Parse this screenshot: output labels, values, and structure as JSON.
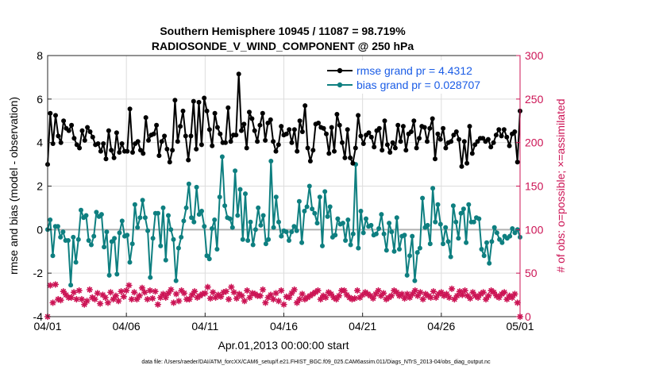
{
  "chart_data": {
    "type": "line",
    "title_line1": "Southern Hemisphere 10945 / 11087 = 98.719%",
    "title_line2": "RADIOSONDE_V_WIND_COMPONENT @ 250 hPa",
    "xlabel": "Apr.01,2013 00:00:00 start",
    "ylabel_left": "rmse and bias (model - observation)",
    "ylabel_right": "# of obs: o=possible; ×=assimilated",
    "footer": "data file: /Users/raeder/DAI/ATM_forcXX/CAM6_setup/f.e21.FHIST_BGC.f09_025.CAM6assim.011/Diags_NTrS_2013-04/obs_diag_output.nc",
    "xlim": [
      0,
      30
    ],
    "ylim_left": [
      -4,
      8
    ],
    "ylim_right": [
      0,
      300
    ],
    "x_ticks": [
      0,
      5,
      10,
      15,
      20,
      25,
      30
    ],
    "x_tick_labels": [
      "04/01",
      "04/06",
      "04/11",
      "04/16",
      "04/21",
      "04/26",
      "05/01"
    ],
    "y_ticks_left": [
      -4,
      -2,
      0,
      2,
      4,
      6,
      8
    ],
    "y_tick_labels_left": [
      "-4",
      "-2",
      "0",
      "2",
      "4",
      "6",
      "8"
    ],
    "y_ticks_right": [
      0,
      50,
      100,
      150,
      200,
      250,
      300
    ],
    "y_tick_labels_right": [
      "0",
      "50",
      "100",
      "150",
      "200",
      "250",
      "300"
    ],
    "grid": true,
    "legend": {
      "position": "top-right",
      "entries": [
        "rmse grand pr = 4.4312",
        "bias grand pr = 0.028707"
      ]
    },
    "colors": {
      "rmse": "#000000",
      "bias": "#0e7f80",
      "obs": "#cc1455",
      "legend_text": "#1a5ce6",
      "zero_line": "#b0b0b0",
      "grid": "#dddddd"
    },
    "series": [
      {
        "name": "rmse",
        "axis": "left",
        "values": [
          3.0,
          5.35,
          3.95,
          5.25,
          4.3,
          4.0,
          5.0,
          4.65,
          4.55,
          4.8,
          4.2,
          3.9,
          3.75,
          4.55,
          4.1,
          4.7,
          4.5,
          4.25,
          3.9,
          3.95,
          3.6,
          3.95,
          3.25,
          4.55,
          3.65,
          3.3,
          4.45,
          3.55,
          3.95,
          3.6,
          3.6,
          5.55,
          3.55,
          3.95,
          4.05,
          3.65,
          3.5,
          5.15,
          4.1,
          4.35,
          4.4,
          4.8,
          3.4,
          4.05,
          4.3,
          3.7,
          3.1,
          3.65,
          5.95,
          4.05,
          4.75,
          5.45,
          4.3,
          3.2,
          4.3,
          5.9,
          3.7,
          5.85,
          3.9,
          6.05,
          5.45,
          4.6,
          3.85,
          5.35,
          4.7,
          4.4,
          4.0,
          4.0,
          5.6,
          4.05,
          4.35,
          4.35,
          7.15,
          4.55,
          4.85,
          3.75,
          5.4,
          5.1,
          4.55,
          4.05,
          4.8,
          5.35,
          4.1,
          4.9,
          5.05,
          4.05,
          3.6,
          3.9,
          4.75,
          4.35,
          4.4,
          4.6,
          4.0,
          4.6,
          3.6,
          5.0,
          4.5,
          5.7,
          3.75,
          3.15,
          3.65,
          4.85,
          4.9,
          4.7,
          4.65,
          4.4,
          3.5,
          4.7,
          3.6,
          5.3,
          4.8,
          4.0,
          3.3,
          4.6,
          3.3,
          3.05,
          3.75,
          5.25,
          4.3,
          3.95,
          4.35,
          4.45,
          4.25,
          3.8,
          4.55,
          4.65,
          3.65,
          5.0,
          3.9,
          3.55,
          4.0,
          3.75,
          4.8,
          4.05,
          4.75,
          3.65,
          4.4,
          4.5,
          5.0,
          3.75,
          4.2,
          4.75,
          4.7,
          4.05,
          4.65,
          5.1,
          3.25,
          4.4,
          4.15,
          4.65,
          3.75,
          4.0,
          4.05,
          4.35,
          4.5,
          4.15,
          2.9,
          4.05,
          3.05,
          4.75,
          3.5,
          3.9,
          4.05,
          4.2,
          4.2,
          4.05,
          4.15,
          3.8,
          4.0,
          4.35,
          4.6,
          4.3,
          4.6,
          4.25,
          3.85,
          4.4,
          4.5,
          3.1,
          5.45
        ]
      },
      {
        "name": "bias",
        "axis": "left",
        "values": [
          0.0,
          0.45,
          -1.2,
          0.15,
          0.15,
          -0.35,
          -0.1,
          -0.5,
          -0.5,
          -2.55,
          -0.35,
          -1.5,
          -0.45,
          0.9,
          0.55,
          0.65,
          -0.5,
          -0.7,
          -0.3,
          0.8,
          0.6,
          0.7,
          -0.8,
          -0.1,
          -2.1,
          -0.55,
          -0.4,
          -2.05,
          -0.15,
          0.4,
          -0.3,
          -0.25,
          -1.5,
          -0.65,
          1.15,
          0.1,
          0.55,
          1.35,
          0.55,
          -0.05,
          -2.2,
          -0.4,
          0.75,
          0.75,
          -0.75,
          1.0,
          -1.4,
          0.65,
          0.0,
          -0.45,
          -2.35,
          -0.85,
          -0.35,
          0.4,
          1.0,
          2.1,
          0.55,
          0.35,
          1.95,
          0.7,
          0.85,
          0.15,
          -1.2,
          -1.35,
          0.05,
          0.45,
          -0.9,
          1.5,
          3.35,
          1.1,
          0.55,
          0.5,
          0.1,
          2.7,
          0.65,
          1.85,
          -0.45,
          1.65,
          -0.5,
          0.35,
          -0.7,
          0.0,
          1.0,
          0.2,
          0.65,
          -0.65,
          -0.45,
          3.15,
          0.1,
          1.5,
          0.35,
          -0.3,
          -0.05,
          -0.1,
          -0.5,
          -0.1,
          0.15,
          -0.05,
          1.3,
          -0.6,
          0.85,
          1.05,
          2.0,
          0.95,
          0.75,
          0.3,
          1.5,
          -0.75,
          1.75,
          0.6,
          1.05,
          -0.35,
          -0.25,
          0.5,
          0.25,
          0.3,
          -0.5,
          0.45,
          -0.7,
          -0.2,
          3.0,
          -0.85,
          0.85,
          -0.15,
          0.5,
          0.15,
          0.2,
          -0.25,
          -0.2,
          0.05,
          0.7,
          -0.2,
          -0.95,
          0.3,
          -0.1,
          -1.0,
          0.55,
          -0.9,
          -0.3,
          -0.25,
          -2.1,
          -1.2,
          -0.3,
          -2.35,
          -1.05,
          -0.85,
          1.45,
          0.1,
          0.2,
          -0.65,
          1.9,
          0.35,
          1.15,
          0.25,
          -0.65,
          0.1,
          -0.55,
          -1.25,
          1.1,
          0.35,
          -0.4,
          0.75,
          0.95,
          -0.6,
          1.15,
          0.35,
          0.35,
          0.55,
          0.5,
          -0.9,
          -1.2,
          -0.6,
          -1.55,
          -0.55,
          0.1,
          -0.15,
          -0.45,
          -0.6,
          -0.3,
          -0.4,
          -0.3,
          0.05,
          -0.15,
          0.0,
          -0.35
        ]
      },
      {
        "name": "obs_assimilated",
        "axis": "right",
        "values": [
          0,
          36,
          16,
          37,
          20,
          19,
          29,
          25,
          22,
          22,
          28,
          20,
          30,
          20,
          14,
          18,
          31,
          22,
          20,
          27,
          15,
          25,
          22,
          16,
          28,
          20,
          24,
          18,
          29,
          23,
          30,
          36,
          20,
          28,
          20,
          24,
          33,
          28,
          20,
          30,
          21,
          29,
          14,
          22,
          26,
          22,
          27,
          31,
          16,
          26,
          18,
          30,
          27,
          20,
          20,
          25,
          29,
          22,
          24,
          26,
          27,
          34,
          21,
          28,
          22,
          25,
          23,
          28,
          29,
          20,
          34,
          28,
          21,
          26,
          24,
          18,
          30,
          22,
          27,
          26,
          24,
          24,
          31,
          16,
          22,
          25,
          20,
          27,
          18,
          30,
          14,
          23,
          22,
          27,
          31,
          16,
          20,
          26,
          20,
          22,
          24,
          26,
          28,
          30,
          20,
          24,
          22,
          28,
          26,
          22,
          20,
          24,
          30,
          30,
          25,
          22,
          20,
          21,
          30,
          22,
          25,
          28,
          26,
          24,
          21,
          26,
          30,
          24,
          27,
          20,
          22,
          24,
          30,
          28,
          24,
          26,
          21,
          26,
          22,
          26,
          30,
          24,
          28,
          20,
          26,
          24,
          22,
          29,
          22,
          26,
          28,
          24,
          26,
          22,
          32,
          20,
          24,
          29,
          25,
          30,
          24,
          21,
          28,
          24,
          22,
          26,
          28,
          20,
          24,
          30,
          28,
          24,
          22,
          26,
          28,
          20,
          24,
          22,
          26,
          16,
          0
        ]
      }
    ]
  }
}
